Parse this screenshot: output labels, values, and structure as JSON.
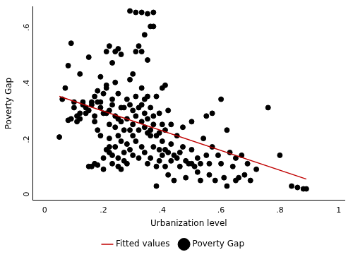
{
  "chart_data": {
    "type": "scatter",
    "x_label": "Urbanization level",
    "y_label": "Poverty Gap",
    "xlim": [
      -0.04,
      1.02
    ],
    "ylim": [
      -0.03,
      0.66
    ],
    "xticks": [
      0,
      {
        "value": 0.2,
        "label": ".2"
      },
      {
        "value": 0.4,
        "label": ".4"
      },
      {
        "value": 0.6,
        "label": ".6"
      },
      {
        "value": 0.8,
        "label": ".8"
      },
      1
    ],
    "yticks": [
      0,
      {
        "value": 0.2,
        "label": ".2"
      },
      {
        "value": 0.4,
        "label": ".4"
      },
      {
        "value": 0.6,
        "label": ".6"
      }
    ],
    "grid": false,
    "legend": "bottom",
    "series": [
      {
        "name": "Fitted values",
        "type": "line",
        "color": "#c00000",
        "line_style": "solid",
        "x": [
          0.05,
          0.89
        ],
        "values": [
          0.34,
          0.045
        ]
      },
      {
        "name": "Poverty Gap",
        "type": "scatter",
        "color": "#000000",
        "marker": "circle",
        "x": [
          0.05,
          0.06,
          0.07,
          0.08,
          0.09,
          0.08,
          0.09,
          0.1,
          0.1,
          0.11,
          0.11,
          0.12,
          0.12,
          0.13,
          0.13,
          0.12,
          0.14,
          0.14,
          0.15,
          0.15,
          0.15,
          0.16,
          0.16,
          0.16,
          0.17,
          0.17,
          0.17,
          0.17,
          0.18,
          0.18,
          0.18,
          0.18,
          0.19,
          0.19,
          0.19,
          0.19,
          0.2,
          0.2,
          0.2,
          0.2,
          0.21,
          0.21,
          0.21,
          0.21,
          0.21,
          0.22,
          0.22,
          0.22,
          0.22,
          0.22,
          0.22,
          0.23,
          0.23,
          0.23,
          0.23,
          0.23,
          0.24,
          0.24,
          0.24,
          0.24,
          0.24,
          0.25,
          0.25,
          0.25,
          0.25,
          0.25,
          0.25,
          0.26,
          0.26,
          0.26,
          0.26,
          0.26,
          0.27,
          0.27,
          0.27,
          0.27,
          0.28,
          0.28,
          0.28,
          0.28,
          0.29,
          0.29,
          0.29,
          0.29,
          0.29,
          0.3,
          0.3,
          0.3,
          0.3,
          0.3,
          0.31,
          0.31,
          0.31,
          0.31,
          0.31,
          0.32,
          0.32,
          0.32,
          0.32,
          0.33,
          0.33,
          0.33,
          0.33,
          0.33,
          0.33,
          0.34,
          0.34,
          0.34,
          0.34,
          0.34,
          0.35,
          0.35,
          0.35,
          0.35,
          0.35,
          0.35,
          0.36,
          0.36,
          0.36,
          0.36,
          0.36,
          0.37,
          0.37,
          0.37,
          0.37,
          0.37,
          0.38,
          0.38,
          0.38,
          0.38,
          0.39,
          0.39,
          0.39,
          0.39,
          0.4,
          0.4,
          0.4,
          0.4,
          0.41,
          0.41,
          0.41,
          0.41,
          0.42,
          0.42,
          0.42,
          0.43,
          0.43,
          0.43,
          0.44,
          0.44,
          0.45,
          0.45,
          0.46,
          0.46,
          0.47,
          0.47,
          0.48,
          0.48,
          0.49,
          0.5,
          0.5,
          0.5,
          0.51,
          0.52,
          0.52,
          0.53,
          0.53,
          0.54,
          0.55,
          0.55,
          0.56,
          0.56,
          0.57,
          0.57,
          0.58,
          0.59,
          0.6,
          0.6,
          0.61,
          0.62,
          0.62,
          0.63,
          0.64,
          0.65,
          0.65,
          0.66,
          0.67,
          0.68,
          0.69,
          0.7,
          0.72,
          0.76,
          0.8,
          0.84,
          0.86,
          0.88,
          0.89
        ],
        "values": [
          0.195,
          0.33,
          0.37,
          0.45,
          0.53,
          0.255,
          0.26,
          0.3,
          0.32,
          0.25,
          0.27,
          0.28,
          0.26,
          0.32,
          0.31,
          0.42,
          0.28,
          0.3,
          0.29,
          0.48,
          0.09,
          0.31,
          0.32,
          0.09,
          0.34,
          0.1,
          0.27,
          0.25,
          0.36,
          0.32,
          0.22,
          0.095,
          0.3,
          0.41,
          0.32,
          0.2,
          0.35,
          0.28,
          0.12,
          0.08,
          0.5,
          0.37,
          0.38,
          0.28,
          0.15,
          0.52,
          0.29,
          0.24,
          0.19,
          0.16,
          0.14,
          0.46,
          0.33,
          0.31,
          0.13,
          0.1,
          0.5,
          0.39,
          0.27,
          0.23,
          0.16,
          0.51,
          0.35,
          0.26,
          0.2,
          0.12,
          0.09,
          0.49,
          0.3,
          0.25,
          0.18,
          0.08,
          0.3,
          0.22,
          0.14,
          0.11,
          0.33,
          0.26,
          0.17,
          0.1,
          0.645,
          0.4,
          0.31,
          0.22,
          0.15,
          0.42,
          0.29,
          0.24,
          0.2,
          0.13,
          0.64,
          0.5,
          0.34,
          0.27,
          0.18,
          0.52,
          0.3,
          0.22,
          0.12,
          0.64,
          0.5,
          0.37,
          0.31,
          0.25,
          0.16,
          0.56,
          0.33,
          0.28,
          0.23,
          0.14,
          0.635,
          0.47,
          0.34,
          0.26,
          0.21,
          0.1,
          0.59,
          0.3,
          0.22,
          0.2,
          0.12,
          0.59,
          0.64,
          0.27,
          0.24,
          0.16,
          0.09,
          0.02,
          0.2,
          0.34,
          0.28,
          0.21,
          0.15,
          0.11,
          0.37,
          0.24,
          0.18,
          0.13,
          0.38,
          0.22,
          0.15,
          0.09,
          0.29,
          0.14,
          0.06,
          0.24,
          0.17,
          0.11,
          0.13,
          0.04,
          0.2,
          0.12,
          0.14,
          0.09,
          0.23,
          0.16,
          0.11,
          0.05,
          0.1,
          0.25,
          0.15,
          0.1,
          0.09,
          0.12,
          0.07,
          0.1,
          0.04,
          0.19,
          0.27,
          0.13,
          0.1,
          0.06,
          0.28,
          0.16,
          0.04,
          0.13,
          0.33,
          0.1,
          0.05,
          0.22,
          0.02,
          0.14,
          0.09,
          0.12,
          0.04,
          0.05,
          0.13,
          0.06,
          0.1,
          0.04,
          0.08,
          0.3,
          0.13,
          0.02,
          0.015,
          0.01,
          0.01
        ]
      }
    ]
  }
}
